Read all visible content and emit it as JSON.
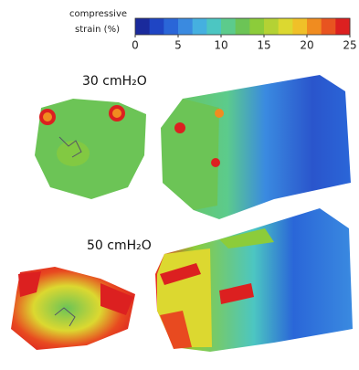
{
  "colorbar": {
    "label": [
      "compressive",
      "strain (%)"
    ],
    "lim": [
      0,
      25
    ],
    "ticks": [
      0,
      5,
      10,
      15,
      20,
      25
    ],
    "colors": [
      "#1a2a9c",
      "#1f45c4",
      "#2a66d8",
      "#3a8ae0",
      "#45b0e0",
      "#4cc6c2",
      "#5ccb8c",
      "#6cc456",
      "#8ccc3a",
      "#b4d234",
      "#dcd830",
      "#f0c028",
      "#f08c20",
      "#e85420",
      "#dc2020"
    ]
  },
  "panels": [
    {
      "label": "30 cmH₂O"
    },
    {
      "label": "50 cmH₂O"
    }
  ]
}
